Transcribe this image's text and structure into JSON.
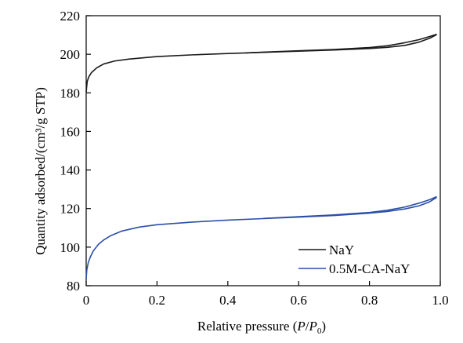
{
  "chart_data": {
    "type": "line",
    "xlabel_parts": {
      "main": "Relative pressure (",
      "p": "P",
      "slash": "/",
      "p0": "P",
      "sub": "0",
      "close": ")"
    },
    "ylabel": "Quantity adsorbed/(cm³/g STP)",
    "xlim": [
      0,
      1.0
    ],
    "ylim": [
      80,
      220
    ],
    "xticks": [
      0,
      0.2,
      0.4,
      0.6,
      0.8,
      1.0
    ],
    "xtick_labels": [
      "0",
      "0.2",
      "0.4",
      "0.6",
      "0.8",
      "1.0"
    ],
    "yticks": [
      80,
      100,
      120,
      140,
      160,
      180,
      200,
      220
    ],
    "ytick_labels": [
      "80",
      "100",
      "120",
      "140",
      "160",
      "180",
      "200",
      "220"
    ],
    "grid": false,
    "legend_position": "bottom-right",
    "series": [
      {
        "name": "NaY",
        "color": "#1a1a1a",
        "adsorption": {
          "x": [
            0.0,
            0.003,
            0.008,
            0.015,
            0.03,
            0.05,
            0.08,
            0.12,
            0.2,
            0.3,
            0.4,
            0.5,
            0.6,
            0.7,
            0.8,
            0.85,
            0.9,
            0.94,
            0.97,
            0.99
          ],
          "y": [
            180.5,
            186.0,
            188.5,
            190.5,
            193.0,
            195.0,
            196.5,
            197.5,
            198.8,
            199.7,
            200.4,
            201.0,
            201.6,
            202.2,
            203.0,
            203.6,
            204.6,
            206.3,
            208.3,
            210.2
          ]
        },
        "desorption": {
          "x": [
            0.99,
            0.97,
            0.94,
            0.9,
            0.85,
            0.8,
            0.7,
            0.6,
            0.5,
            0.45
          ],
          "y": [
            210.4,
            209.2,
            207.6,
            206.0,
            204.4,
            203.5,
            202.5,
            201.8,
            201.1,
            200.7
          ]
        }
      },
      {
        "name": "0.5M-CA-NaY",
        "color": "#2a4fa8",
        "adsorption": {
          "x": [
            0.0,
            0.002,
            0.006,
            0.012,
            0.02,
            0.035,
            0.05,
            0.07,
            0.1,
            0.15,
            0.2,
            0.3,
            0.4,
            0.5,
            0.6,
            0.7,
            0.8,
            0.85,
            0.9,
            0.94,
            0.97,
            0.99
          ],
          "y": [
            84.0,
            88.5,
            92.0,
            95.0,
            98.0,
            101.5,
            103.8,
            106.0,
            108.3,
            110.4,
            111.6,
            113.0,
            114.0,
            114.8,
            115.6,
            116.4,
            117.6,
            118.5,
            119.8,
            121.4,
            123.5,
            125.8
          ]
        },
        "desorption": {
          "x": [
            0.99,
            0.97,
            0.94,
            0.9,
            0.85,
            0.8,
            0.7,
            0.6,
            0.5
          ],
          "y": [
            126.2,
            124.6,
            122.8,
            120.8,
            119.1,
            118.0,
            116.7,
            115.8,
            114.9
          ]
        }
      }
    ]
  }
}
